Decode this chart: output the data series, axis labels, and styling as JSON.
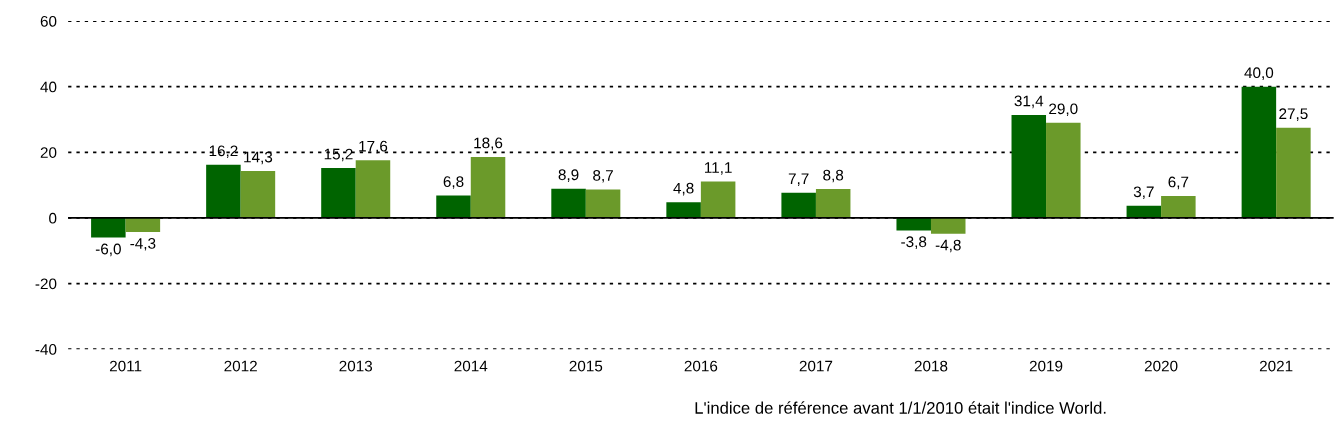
{
  "chart_data": {
    "type": "bar",
    "categories": [
      "2011",
      "2012",
      "2013",
      "2014",
      "2015",
      "2016",
      "2017",
      "2018",
      "2019",
      "2020",
      "2021"
    ],
    "series": [
      {
        "color": "#006400",
        "values": [
          -6.0,
          16.2,
          15.2,
          6.8,
          8.9,
          4.8,
          7.7,
          -3.8,
          31.4,
          3.7,
          40.0
        ],
        "value_labels": [
          "-6,0",
          "16,2",
          "15,2",
          "6,8",
          "8,9",
          "4,8",
          "7,7",
          "-3,8",
          "31,4",
          "3,7",
          "40,0"
        ]
      },
      {
        "color": "#6b9a2a",
        "values": [
          -4.3,
          14.3,
          17.6,
          18.6,
          8.7,
          11.1,
          8.8,
          -4.8,
          29.0,
          6.7,
          27.5
        ],
        "value_labels": [
          "-4,3",
          "14,3",
          "17,6",
          "18,6",
          "8,7",
          "11,1",
          "8,8",
          "-4,8",
          "29,0",
          "6,7",
          "27,5"
        ]
      }
    ],
    "ylim": [
      -40,
      60
    ],
    "yticks": [
      -40,
      -20,
      0,
      20,
      40,
      60
    ],
    "grid": "y",
    "legend": false,
    "annotations": [
      "L'indice de référence avant 1/1/2010 était l'indice World."
    ]
  }
}
